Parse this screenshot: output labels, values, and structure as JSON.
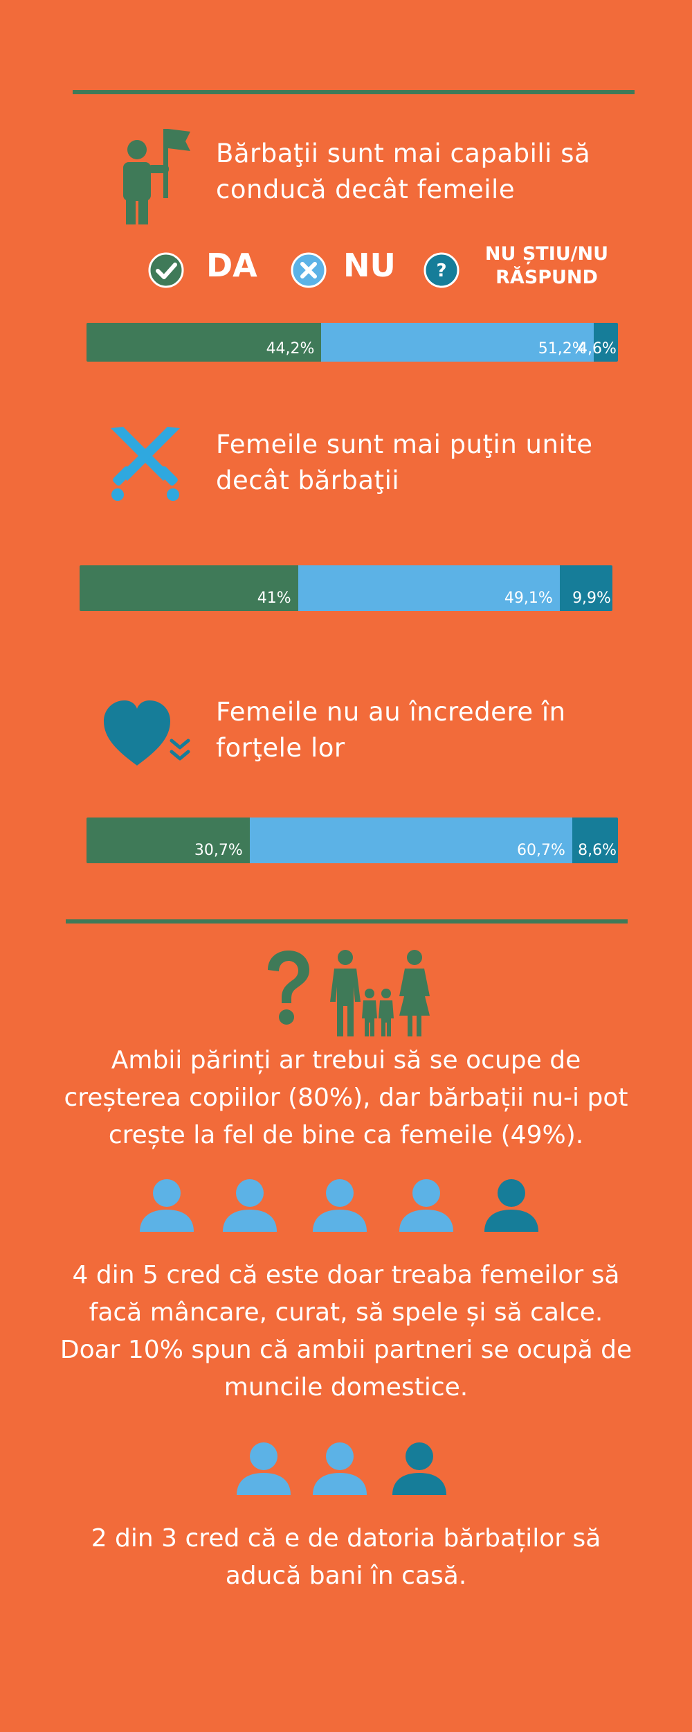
{
  "legend": {
    "yes": "DA",
    "no": "NU",
    "dont_know_line1": "NU ȘTIU/NU",
    "dont_know_line2": "RĂSPUND"
  },
  "questions": [
    {
      "line1": "Bărbaţii sunt mai capabili să",
      "line2": "conducă decât femeile",
      "icon": "person-flag-icon",
      "values": [
        "44,2%",
        "51,2%",
        "4,6%"
      ]
    },
    {
      "line1": "Femeile sunt mai puţin unite",
      "line2": "decât bărbaţii",
      "icon": "crossed-swords-icon",
      "values": [
        "41%",
        "49,1%",
        "9,9%"
      ]
    },
    {
      "line1": "Femeile nu au încredere în",
      "line2": "forţele lor",
      "icon": "heart-arrows-icon",
      "values": [
        "30,7%",
        "60,7%",
        "8,6%"
      ]
    }
  ],
  "chart_data": {
    "type": "bar",
    "orientation": "horizontal-stacked",
    "categories": [
      "Bărbaţii sunt mai capabili să conducă decât femeile",
      "Femeile sunt mai puţin unite decât bărbaţii",
      "Femeile nu au încredere în forţele lor"
    ],
    "series": [
      {
        "name": "DA",
        "values": [
          44.2,
          41.0,
          30.7
        ],
        "color": "#3f7a58"
      },
      {
        "name": "NU",
        "values": [
          51.2,
          49.1,
          60.7
        ],
        "color": "#5cb2e6"
      },
      {
        "name": "NU ȘTIU/NU RĂSPUND",
        "values": [
          4.6,
          9.9,
          8.6
        ],
        "color": "#167d99"
      }
    ]
  },
  "family_section": {
    "line1": "Ambii părinți ar trebui să se ocupe de",
    "line2": "creșterea copiilor (80%), dar bărbații nu-i pot",
    "line3": "crește la fel de bine ca femeile (49%)."
  },
  "chores_section": {
    "people_total": 5,
    "people_highlighted": 1,
    "line1": "4 din 5 cred că este doar treaba femeilor să",
    "line2": "facă mâncare, curat, să spele și să calce.",
    "line3": "Doar 10% spun că ambii partneri se ocupă de",
    "line4": "muncile domestice."
  },
  "money_section": {
    "people_total": 3,
    "people_highlighted": 1,
    "line1": "2 din 3 cred că e de datoria bărbaților să",
    "line2": "aducă bani în casă."
  },
  "colors": {
    "background": "#f26b3a",
    "green": "#3f7a58",
    "light_blue": "#5cb2e6",
    "dark_blue": "#167d99"
  }
}
